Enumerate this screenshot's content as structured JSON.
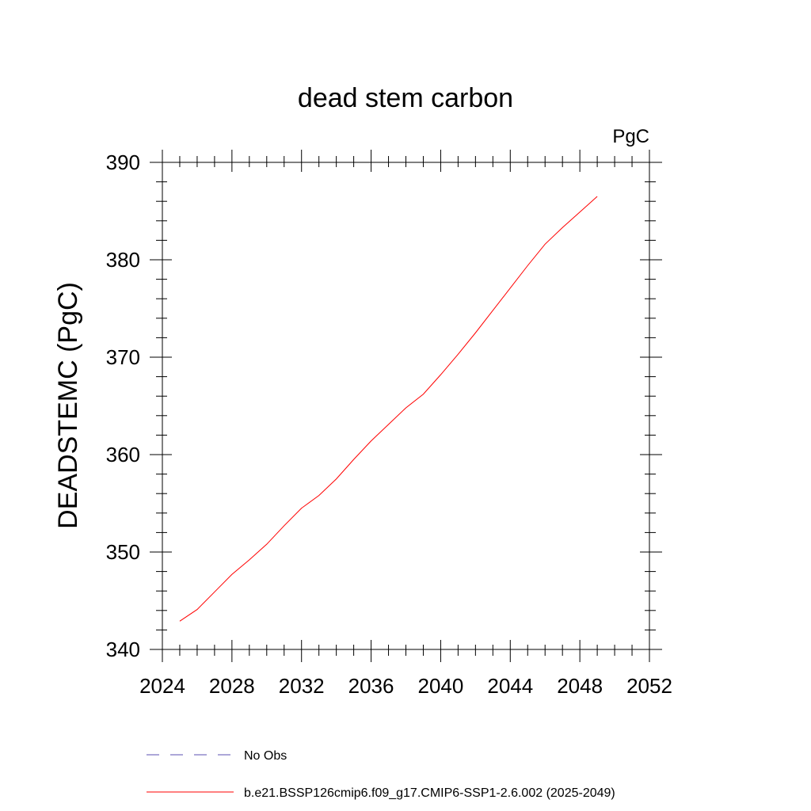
{
  "chart_data": {
    "type": "line",
    "title": "dead stem carbon",
    "units_label": "PgC",
    "ylabel": "DEADSTEMC  (PgC)",
    "xlabel": "",
    "xlim": [
      2024,
      2052
    ],
    "ylim": [
      340,
      390
    ],
    "x_ticks": [
      2024,
      2028,
      2032,
      2036,
      2040,
      2044,
      2048,
      2052
    ],
    "x_tick_labels": [
      "2024",
      "2028",
      "2032",
      "2036",
      "2040",
      "2044",
      "2048",
      "2052"
    ],
    "y_ticks": [
      340,
      350,
      360,
      370,
      380,
      390
    ],
    "y_tick_labels": [
      "340",
      "350",
      "360",
      "370",
      "380",
      "390"
    ],
    "x_minor_step": 1,
    "y_minor_step": 2,
    "grid": false,
    "legend_position": "bottom",
    "series": [
      {
        "name": "b.e21.BSSP126cmip6.f09_g17.CMIP6-SSP1-2.6.002 (2025-2049)",
        "color": "#ff0000",
        "dash": "solid",
        "x": [
          2025,
          2026,
          2027,
          2028,
          2029,
          2030,
          2031,
          2032,
          2033,
          2034,
          2035,
          2036,
          2037,
          2038,
          2039,
          2040,
          2041,
          2042,
          2043,
          2044,
          2045,
          2046,
          2047,
          2048,
          2049
        ],
        "y": [
          342.9,
          344.1,
          345.9,
          347.7,
          349.2,
          350.8,
          352.7,
          354.5,
          355.8,
          357.5,
          359.5,
          361.4,
          363.1,
          364.8,
          366.2,
          368.2,
          370.3,
          372.5,
          374.8,
          377.1,
          379.4,
          381.6,
          383.3,
          384.9,
          386.5
        ]
      },
      {
        "name": "No Obs",
        "color": "#5b4fb0",
        "dash": "dashed",
        "x": [],
        "y": []
      }
    ]
  }
}
